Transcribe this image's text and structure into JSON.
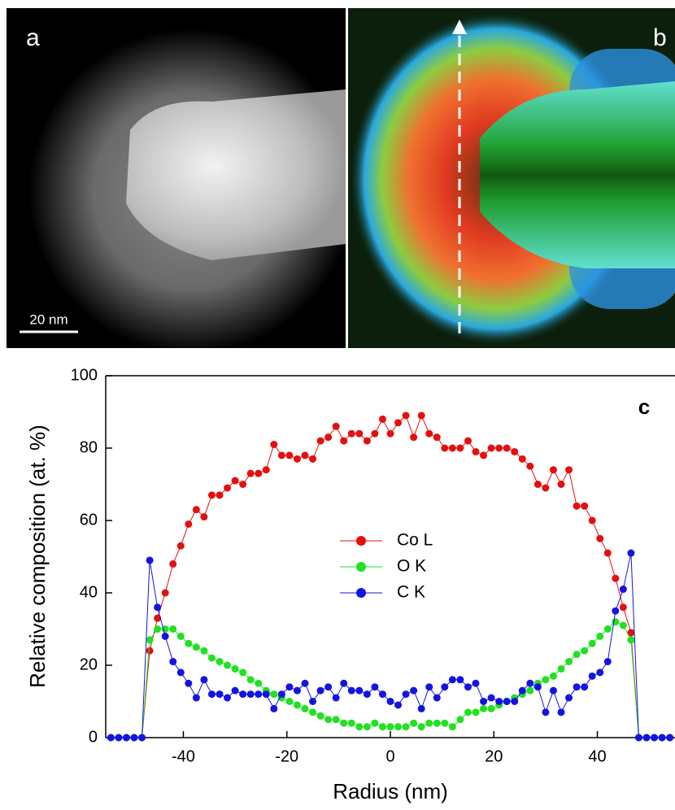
{
  "panel_labels": {
    "a": "a",
    "b": "b",
    "scale_bar": "20 nm"
  },
  "chart_data": {
    "type": "line",
    "panel_label": "c",
    "x_label": "Radius (nm)",
    "y_label": "Relative composition (at. %)",
    "x": [
      -54,
      -52.5,
      -51,
      -49.5,
      -48,
      -46.5,
      -45,
      -43.5,
      -42,
      -40.5,
      -39,
      -37.5,
      -36,
      -34.5,
      -33,
      -31.5,
      -30,
      -28.5,
      -27,
      -25.5,
      -24,
      -22.5,
      -21,
      -19.5,
      -18,
      -16.5,
      -15,
      -13.5,
      -12,
      -10.5,
      -9,
      -7.5,
      -6,
      -4.5,
      -3,
      -1.5,
      0,
      1.5,
      3,
      4.5,
      6,
      7.5,
      9,
      10.5,
      12,
      13.5,
      15,
      16.5,
      18,
      19.5,
      21,
      22.5,
      24,
      25.5,
      27,
      28.5,
      30,
      31.5,
      33,
      34.5,
      36,
      37.5,
      39,
      40.5,
      42,
      43.5,
      45,
      46.5,
      48,
      49.5,
      51,
      52.5,
      54
    ],
    "series": [
      {
        "name": "Co L",
        "color": "#e41010",
        "values": [
          0,
          0,
          0,
          0,
          0,
          24,
          33,
          40,
          48,
          53,
          59,
          63,
          61,
          67,
          67,
          69,
          71,
          70,
          73,
          73,
          74,
          81,
          78,
          78,
          77,
          78,
          77,
          82,
          83,
          86,
          82,
          84,
          84,
          82,
          84,
          88,
          84,
          87,
          89,
          83,
          89,
          84,
          83,
          80,
          80,
          80,
          82,
          79,
          78,
          80,
          80,
          80,
          79,
          77,
          75,
          70,
          69,
          74,
          70,
          74,
          64,
          64,
          60,
          55,
          51,
          44,
          36,
          29,
          0,
          0,
          0,
          0,
          0
        ]
      },
      {
        "name": "O K",
        "color": "#22e022",
        "values": [
          0,
          0,
          0,
          0,
          0,
          27,
          30,
          30,
          30,
          28,
          26,
          25,
          24,
          22,
          21,
          20,
          19,
          18,
          16,
          15,
          13,
          12,
          11,
          10,
          9,
          8,
          7,
          6,
          5,
          5,
          4,
          4,
          3,
          3,
          4,
          3,
          3,
          3,
          3,
          4,
          3,
          4,
          4,
          4,
          3,
          5,
          7,
          7,
          8,
          8,
          9,
          10,
          11,
          12,
          13,
          15,
          16,
          17,
          19,
          21,
          23,
          24,
          26,
          28,
          30,
          32,
          31,
          27,
          0,
          0,
          0,
          0,
          0
        ]
      },
      {
        "name": "C K",
        "color": "#1414e0",
        "values": [
          0,
          0,
          0,
          0,
          0,
          49,
          36,
          28,
          21,
          18,
          15,
          11,
          16,
          12,
          12,
          11,
          13,
          12,
          12,
          12,
          12,
          8,
          12,
          14,
          13,
          15,
          10,
          13,
          14,
          11,
          15,
          13,
          13,
          12,
          14,
          12,
          10,
          9,
          12,
          13,
          8,
          14,
          11,
          14,
          16,
          16,
          14,
          15,
          10,
          11,
          10,
          10,
          10,
          13,
          15,
          14,
          7,
          13,
          7,
          11,
          14,
          14,
          17,
          18,
          21,
          35,
          41,
          51,
          0,
          0,
          0,
          0,
          0
        ]
      }
    ],
    "xlim": [
      -55,
      55
    ],
    "ylim": [
      0,
      100
    ],
    "xticks": [
      -40,
      -20,
      0,
      20,
      40
    ],
    "yticks": [
      0,
      20,
      40,
      60,
      80,
      100
    ]
  }
}
